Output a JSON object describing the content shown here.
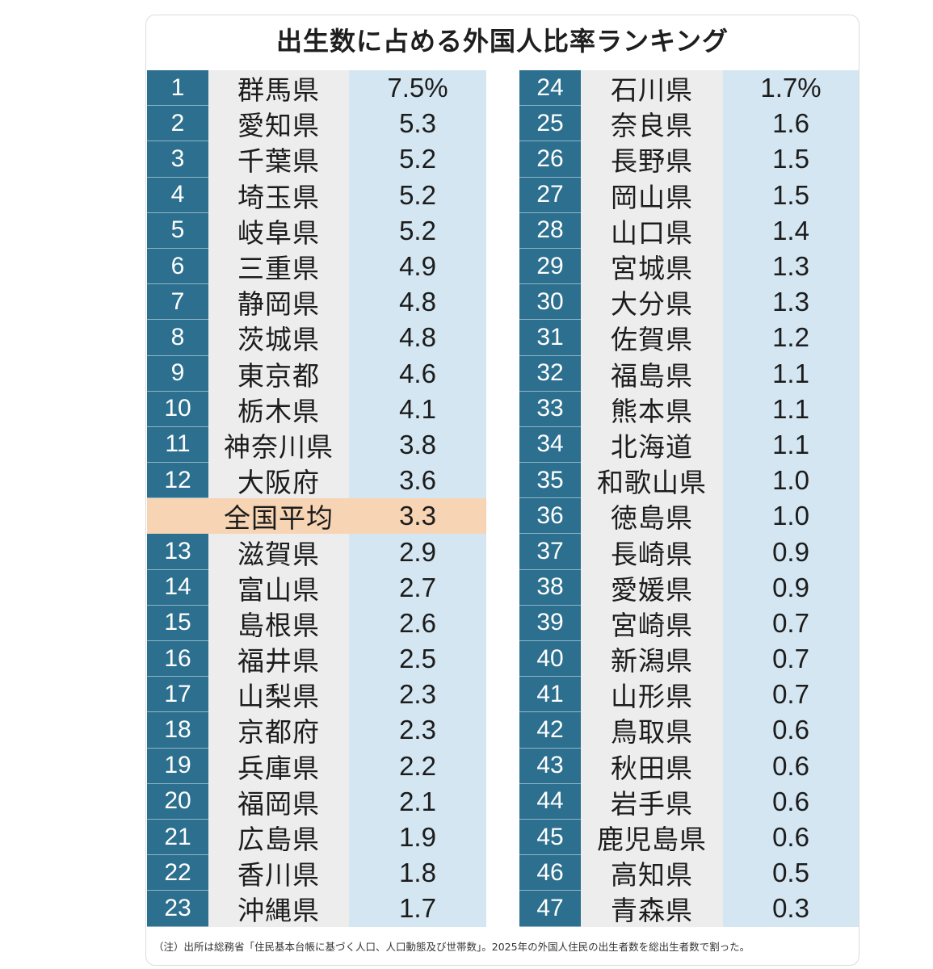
{
  "title": "出生数に占める外国人比率ランキング",
  "note": "（注）出所は総務省「住民基本台帳に基づく人口、人口動態及び世帯数」。2025年の外国人住民の出生者数を総出生者数で割った。",
  "colors": {
    "rank_bg": "#2c6f8e",
    "name_bg": "#ededed",
    "value_bg": "#d4e6f1",
    "average_bg": "#f6d4b4"
  },
  "chart_data": {
    "type": "table",
    "title": "出生数に占める外国人比率ランキング",
    "columns": [
      "rank",
      "prefecture",
      "value"
    ],
    "left_rows": [
      {
        "rank": "1",
        "name": "群馬県",
        "value": "7.5%"
      },
      {
        "rank": "2",
        "name": "愛知県",
        "value": "5.3"
      },
      {
        "rank": "3",
        "name": "千葉県",
        "value": "5.2"
      },
      {
        "rank": "4",
        "name": "埼玉県",
        "value": "5.2"
      },
      {
        "rank": "5",
        "name": "岐阜県",
        "value": "5.2"
      },
      {
        "rank": "6",
        "name": "三重県",
        "value": "4.9"
      },
      {
        "rank": "7",
        "name": "静岡県",
        "value": "4.8"
      },
      {
        "rank": "8",
        "name": "茨城県",
        "value": "4.8"
      },
      {
        "rank": "9",
        "name": "東京都",
        "value": "4.6"
      },
      {
        "rank": "10",
        "name": "栃木県",
        "value": "4.1"
      },
      {
        "rank": "11",
        "name": "神奈川県",
        "value": "3.8"
      },
      {
        "rank": "12",
        "name": "大阪府",
        "value": "3.6"
      },
      {
        "rank": "",
        "name": "全国平均",
        "value": "3.3",
        "average": true
      },
      {
        "rank": "13",
        "name": "滋賀県",
        "value": "2.9"
      },
      {
        "rank": "14",
        "name": "富山県",
        "value": "2.7"
      },
      {
        "rank": "15",
        "name": "島根県",
        "value": "2.6"
      },
      {
        "rank": "16",
        "name": "福井県",
        "value": "2.5"
      },
      {
        "rank": "17",
        "name": "山梨県",
        "value": "2.3"
      },
      {
        "rank": "18",
        "name": "京都府",
        "value": "2.3"
      },
      {
        "rank": "19",
        "name": "兵庫県",
        "value": "2.2"
      },
      {
        "rank": "20",
        "name": "福岡県",
        "value": "2.1"
      },
      {
        "rank": "21",
        "name": "広島県",
        "value": "1.9"
      },
      {
        "rank": "22",
        "name": "香川県",
        "value": "1.8"
      },
      {
        "rank": "23",
        "name": "沖縄県",
        "value": "1.7"
      }
    ],
    "right_rows": [
      {
        "rank": "24",
        "name": "石川県",
        "value": "1.7%"
      },
      {
        "rank": "25",
        "name": "奈良県",
        "value": "1.6"
      },
      {
        "rank": "26",
        "name": "長野県",
        "value": "1.5"
      },
      {
        "rank": "27",
        "name": "岡山県",
        "value": "1.5"
      },
      {
        "rank": "28",
        "name": "山口県",
        "value": "1.4"
      },
      {
        "rank": "29",
        "name": "宮城県",
        "value": "1.3"
      },
      {
        "rank": "30",
        "name": "大分県",
        "value": "1.3"
      },
      {
        "rank": "31",
        "name": "佐賀県",
        "value": "1.2"
      },
      {
        "rank": "32",
        "name": "福島県",
        "value": "1.1"
      },
      {
        "rank": "33",
        "name": "熊本県",
        "value": "1.1"
      },
      {
        "rank": "34",
        "name": "北海道",
        "value": "1.1"
      },
      {
        "rank": "35",
        "name": "和歌山県",
        "value": "1.0"
      },
      {
        "rank": "36",
        "name": "徳島県",
        "value": "1.0"
      },
      {
        "rank": "37",
        "name": "長崎県",
        "value": "0.9"
      },
      {
        "rank": "38",
        "name": "愛媛県",
        "value": "0.9"
      },
      {
        "rank": "39",
        "name": "宮崎県",
        "value": "0.7"
      },
      {
        "rank": "40",
        "name": "新潟県",
        "value": "0.7"
      },
      {
        "rank": "41",
        "name": "山形県",
        "value": "0.7"
      },
      {
        "rank": "42",
        "name": "鳥取県",
        "value": "0.6"
      },
      {
        "rank": "43",
        "name": "秋田県",
        "value": "0.6"
      },
      {
        "rank": "44",
        "name": "岩手県",
        "value": "0.6"
      },
      {
        "rank": "45",
        "name": "鹿児島県",
        "value": "0.6"
      },
      {
        "rank": "46",
        "name": "高知県",
        "value": "0.5"
      },
      {
        "rank": "47",
        "name": "青森県",
        "value": "0.3"
      }
    ]
  }
}
